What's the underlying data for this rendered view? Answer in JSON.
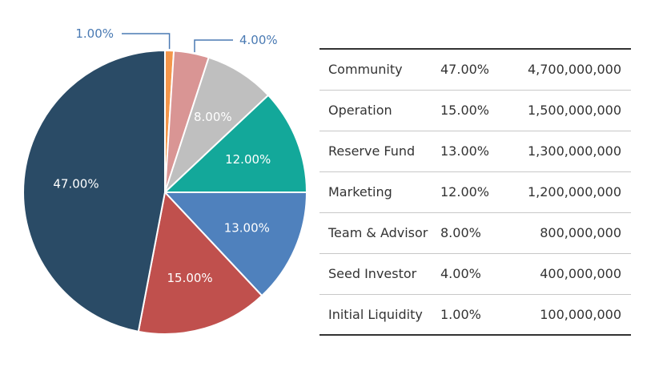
{
  "chart_data": {
    "type": "pie",
    "title": "",
    "slices": [
      {
        "label": "Initial Liquidity",
        "value": 1.0,
        "display": "1.00%",
        "color": "#f4964a",
        "label_style": "callout-left"
      },
      {
        "label": "Seed Investor",
        "value": 4.0,
        "display": "4.00%",
        "color": "#d99594",
        "label_style": "callout-right"
      },
      {
        "label": "Team & Advisor",
        "value": 8.0,
        "display": "8.00%",
        "color": "#bfbfbf",
        "label_style": "inside"
      },
      {
        "label": "Marketing",
        "value": 12.0,
        "display": "12.00%",
        "color": "#13a89a",
        "label_style": "inside"
      },
      {
        "label": "Reserve Fund",
        "value": 13.0,
        "display": "13.00%",
        "color": "#4f81bd",
        "label_style": "inside"
      },
      {
        "label": "Operation",
        "value": 15.0,
        "display": "15.00%",
        "color": "#c0504d",
        "label_style": "inside"
      },
      {
        "label": "Community",
        "value": 47.0,
        "display": "47.00%",
        "color": "#2a4b66",
        "label_style": "inside"
      }
    ]
  },
  "table": {
    "rows": [
      {
        "name": "Community",
        "percent": "47.00%",
        "amount": "4,700,000,000"
      },
      {
        "name": "Operation",
        "percent": "15.00%",
        "amount": "1,500,000,000"
      },
      {
        "name": "Reserve Fund",
        "percent": "13.00%",
        "amount": "1,300,000,000"
      },
      {
        "name": "Marketing",
        "percent": "12.00%",
        "amount": "1,200,000,000"
      },
      {
        "name": "Team & Advisor",
        "percent": "8.00%",
        "amount": "800,000,000"
      },
      {
        "name": "Seed Investor",
        "percent": "4.00%",
        "amount": "400,000,000"
      },
      {
        "name": "Initial Liquidity",
        "percent": "1.00%",
        "amount": "100,000,000"
      }
    ]
  }
}
